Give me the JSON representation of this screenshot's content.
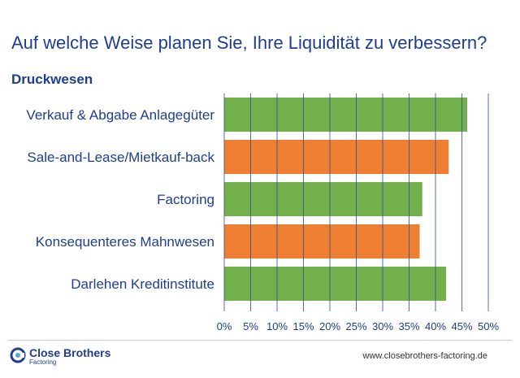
{
  "header": {
    "title": "Auf welche Weise planen Sie, Ihre Liquidität zu verbessern?",
    "subtitle": "Druckwesen"
  },
  "chart_data": {
    "type": "bar",
    "orientation": "horizontal",
    "categories": [
      "Verkauf & Abgabe Anlagegüter",
      "Sale-and-Lease/Mietkauf-back",
      "Factoring",
      "Konsequenteres Mahnwesen",
      "Darlehen Kreditinstitute"
    ],
    "values": [
      46,
      42.5,
      37.5,
      37,
      42
    ],
    "bar_colors": [
      "#71b04a",
      "#ee7e32",
      "#71b04a",
      "#ee7e32",
      "#71b04a"
    ],
    "xlim": [
      0,
      50
    ],
    "x_ticks": [
      0,
      5,
      10,
      15,
      20,
      25,
      30,
      35,
      40,
      45,
      50
    ],
    "x_tick_labels": [
      "0%",
      "5%",
      "10%",
      "15%",
      "20%",
      "25%",
      "30%",
      "35%",
      "40%",
      "45%",
      "50%"
    ],
    "grid": "vertical",
    "gridline_color": "#2b4c9b"
  },
  "footer": {
    "brand": "Close Brothers",
    "brand_sub": "Factoring",
    "url": "www.closebrothers-factoring.de"
  }
}
